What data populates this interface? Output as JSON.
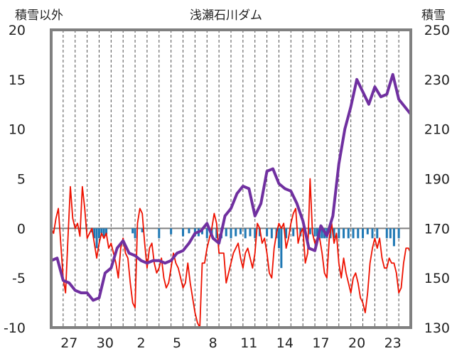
{
  "chart_data": {
    "type": "line",
    "title": "浅瀬石川ダム",
    "y_left_label": "積雪以外",
    "y_right_label": "積雪",
    "y_left_range": [
      -10,
      20
    ],
    "y_left_ticks": [
      "20",
      "15",
      "10",
      "5",
      "0",
      "-5",
      "-10"
    ],
    "y_right_range": [
      130,
      250
    ],
    "y_right_ticks": [
      "250",
      "230",
      "210",
      "190",
      "170",
      "150",
      "130"
    ],
    "x_range": [
      0,
      30
    ],
    "x_ticks": [
      {
        "x": 1.5,
        "label": "27"
      },
      {
        "x": 4.5,
        "label": "30"
      },
      {
        "x": 7.5,
        "label": "2"
      },
      {
        "x": 10.5,
        "label": "5"
      },
      {
        "x": 13.5,
        "label": "8"
      },
      {
        "x": 16.5,
        "label": "11"
      },
      {
        "x": 19.5,
        "label": "14"
      },
      {
        "x": 22.5,
        "label": "17"
      },
      {
        "x": 25.5,
        "label": "20"
      },
      {
        "x": 28.5,
        "label": "23"
      }
    ],
    "grid": "vertical dashed, 1 per day",
    "colors": {
      "temperature": "#ee1100",
      "snow_depth": "#7030a0",
      "precip": "#1f78b4",
      "frame": "#808080"
    },
    "series": [
      {
        "name": "",
        "role": "temperature",
        "axis": "left",
        "x": [
          0.0,
          0.2,
          0.4,
          0.6,
          0.8,
          1.0,
          1.2,
          1.4,
          1.6,
          1.8,
          2.0,
          2.2,
          2.4,
          2.6,
          2.8,
          3.0,
          3.2,
          3.4,
          3.6,
          3.8,
          4.0,
          4.2,
          4.4,
          4.6,
          4.8,
          5.0,
          5.2,
          5.4,
          5.6,
          5.8,
          6.0,
          6.2,
          6.4,
          6.6,
          6.8,
          7.0,
          7.2,
          7.4,
          7.6,
          7.8,
          8.0,
          8.2,
          8.4,
          8.6,
          8.8,
          9.0,
          9.2,
          9.4,
          9.6,
          9.8,
          10.0,
          10.2,
          10.4,
          10.6,
          10.8,
          11.0,
          11.2,
          11.4,
          11.6,
          11.8,
          12.0,
          12.2,
          12.4,
          12.6,
          12.8,
          13.0,
          13.2,
          13.4,
          13.6,
          13.8,
          14.0,
          14.2,
          14.4,
          14.6,
          14.8,
          15.0,
          15.2,
          15.4,
          15.6,
          15.8,
          16.0,
          16.2,
          16.4,
          16.6,
          16.8,
          17.0,
          17.2,
          17.4,
          17.6,
          17.8,
          18.0,
          18.2,
          18.4,
          18.6,
          18.8,
          19.0,
          19.2,
          19.4,
          19.6,
          19.8,
          20.0,
          20.2,
          20.4,
          20.6,
          20.8,
          21.0,
          21.2,
          21.4,
          21.6,
          21.8,
          22.0,
          22.2,
          22.4,
          22.6,
          22.8,
          23.0,
          23.2,
          23.4,
          23.6,
          23.8,
          24.0,
          24.2,
          24.4,
          24.6,
          24.8,
          25.0,
          25.2,
          25.4,
          25.6,
          25.8,
          26.0,
          26.2,
          26.4,
          26.6,
          26.8,
          27.0,
          27.2,
          27.4,
          27.6,
          27.8,
          28.0,
          28.2,
          28.4,
          28.6,
          28.8,
          29.0,
          29.2,
          29.4,
          29.6,
          29.8,
          30.0
        ],
        "values": [
          0.0,
          -0.5,
          1.0,
          2.0,
          -1.5,
          -5.0,
          -6.5,
          -1.0,
          4.2,
          1.0,
          0.0,
          0.5,
          -0.8,
          4.2,
          2.0,
          -1.0,
          -0.5,
          0.0,
          -1.5,
          -3.0,
          -1.5,
          -0.5,
          -1.0,
          -0.5,
          -2.0,
          -1.5,
          -2.5,
          -3.5,
          -5.0,
          -2.0,
          -1.0,
          -2.5,
          -3.0,
          -5.5,
          -7.5,
          -8.0,
          0.5,
          2.0,
          1.5,
          -1.5,
          -4.0,
          -2.0,
          -1.5,
          -3.5,
          -4.5,
          -4.0,
          -3.0,
          -5.0,
          -6.0,
          -5.5,
          -4.0,
          -2.5,
          -3.5,
          -4.0,
          -5.0,
          -6.0,
          -5.5,
          -3.5,
          -5.5,
          -7.0,
          -8.5,
          -9.5,
          -10.0,
          -3.5,
          -3.5,
          -2.0,
          -1.0,
          0.0,
          1.5,
          0.5,
          -2.5,
          -2.5,
          -2.5,
          -5.5,
          -4.5,
          -3.5,
          -2.5,
          -2.0,
          -1.5,
          -3.0,
          -4.0,
          -2.5,
          -2.0,
          -3.0,
          -4.0,
          -2.5,
          0.5,
          0.0,
          -1.5,
          -1.0,
          -2.5,
          -4.5,
          -5.0,
          -2.0,
          -0.5,
          0.5,
          0.0,
          0.5,
          -2.0,
          -1.0,
          0.5,
          1.5,
          2.0,
          -1.5,
          -0.5,
          0.0,
          -3.5,
          -2.5,
          5.0,
          -0.5,
          -1.5,
          -1.0,
          -1.0,
          -2.5,
          -4.5,
          -5.0,
          -1.0,
          0.5,
          -1.5,
          -0.5,
          -3.5,
          -5.0,
          -3.0,
          -4.5,
          -5.5,
          -6.5,
          -5.0,
          -4.5,
          -5.5,
          -7.0,
          -7.5,
          -8.5,
          -6.5,
          -3.5,
          -2.0,
          -1.0,
          -2.0,
          -1.0,
          -3.0,
          -4.0,
          -4.0,
          -3.0,
          -3.5,
          -3.5,
          -4.5,
          -6.5,
          -6.0,
          -3.5,
          -2.0,
          -2.0,
          -2.5
        ]
      },
      {
        "name": "",
        "role": "snow_depth",
        "axis": "right",
        "x": [
          0.0,
          0.5,
          1.0,
          1.5,
          2.0,
          2.5,
          3.0,
          3.5,
          4.0,
          4.5,
          5.0,
          5.5,
          6.0,
          6.5,
          7.0,
          7.5,
          8.0,
          8.5,
          9.0,
          9.5,
          10.0,
          10.5,
          11.0,
          11.5,
          12.0,
          12.5,
          13.0,
          13.5,
          14.0,
          14.5,
          15.0,
          15.5,
          16.0,
          16.5,
          17.0,
          17.5,
          18.0,
          18.5,
          19.0,
          19.5,
          20.0,
          20.5,
          21.0,
          21.5,
          22.0,
          22.5,
          23.0,
          23.5,
          24.0,
          24.5,
          25.0,
          25.5,
          26.0,
          26.5,
          27.0,
          27.5,
          28.0,
          28.5,
          29.0,
          29.5,
          30.0
        ],
        "values": [
          157,
          158,
          149,
          148,
          145,
          144,
          144,
          141,
          142,
          152,
          154,
          162,
          165,
          160,
          159,
          157,
          156,
          157,
          157,
          156,
          157,
          160,
          161,
          164,
          168,
          169,
          172,
          166,
          164,
          175,
          178,
          184,
          187,
          186,
          175,
          180,
          193,
          194,
          188,
          186,
          185,
          180,
          173,
          162,
          161,
          171,
          167,
          175,
          196,
          210,
          219,
          230,
          225,
          220,
          227,
          223,
          224,
          232,
          222,
          219,
          216
        ]
      },
      {
        "name": "",
        "role": "precip",
        "axis": "left",
        "type": "bar",
        "x": [
          3.4,
          3.6,
          3.8,
          4.0,
          4.2,
          4.4,
          4.6,
          6.8,
          7.0,
          7.6,
          9.0,
          10.0,
          11.0,
          11.5,
          12.0,
          12.3,
          12.6,
          13.0,
          13.4,
          13.8,
          14.2,
          14.6,
          15.0,
          15.4,
          15.8,
          16.2,
          16.6,
          17.0,
          17.4,
          18.0,
          18.4,
          18.8,
          19.0,
          19.2,
          19.6,
          20.2,
          20.8,
          21.6,
          22.0,
          22.2,
          22.4,
          22.6,
          22.8,
          23.0,
          23.3,
          23.6,
          24.0,
          24.4,
          24.8,
          25.2,
          25.6,
          26.0,
          26.4,
          26.8,
          27.2,
          28.0,
          28.3,
          28.6,
          29.0
        ],
        "values": [
          -0.4,
          -1.0,
          -2.0,
          -1.0,
          -0.5,
          -0.8,
          -0.6,
          -0.5,
          -1.0,
          -0.4,
          -1.0,
          -0.6,
          -0.8,
          -0.5,
          -0.8,
          -0.8,
          -0.6,
          -1.0,
          -0.8,
          -1.0,
          -1.0,
          -0.8,
          -1.0,
          -0.8,
          -0.6,
          -1.0,
          -0.8,
          -1.0,
          -0.8,
          -0.8,
          -1.0,
          -1.0,
          -2.0,
          -4.0,
          -1.0,
          -0.8,
          -0.8,
          -0.6,
          -0.8,
          -0.8,
          -1.0,
          -1.0,
          -1.0,
          -1.0,
          -1.0,
          -1.0,
          -1.0,
          -1.0,
          -1.0,
          -1.0,
          -1.0,
          -1.0,
          -0.6,
          -1.0,
          -1.0,
          -1.0,
          -1.0,
          -1.8,
          -1.0
        ]
      }
    ]
  }
}
